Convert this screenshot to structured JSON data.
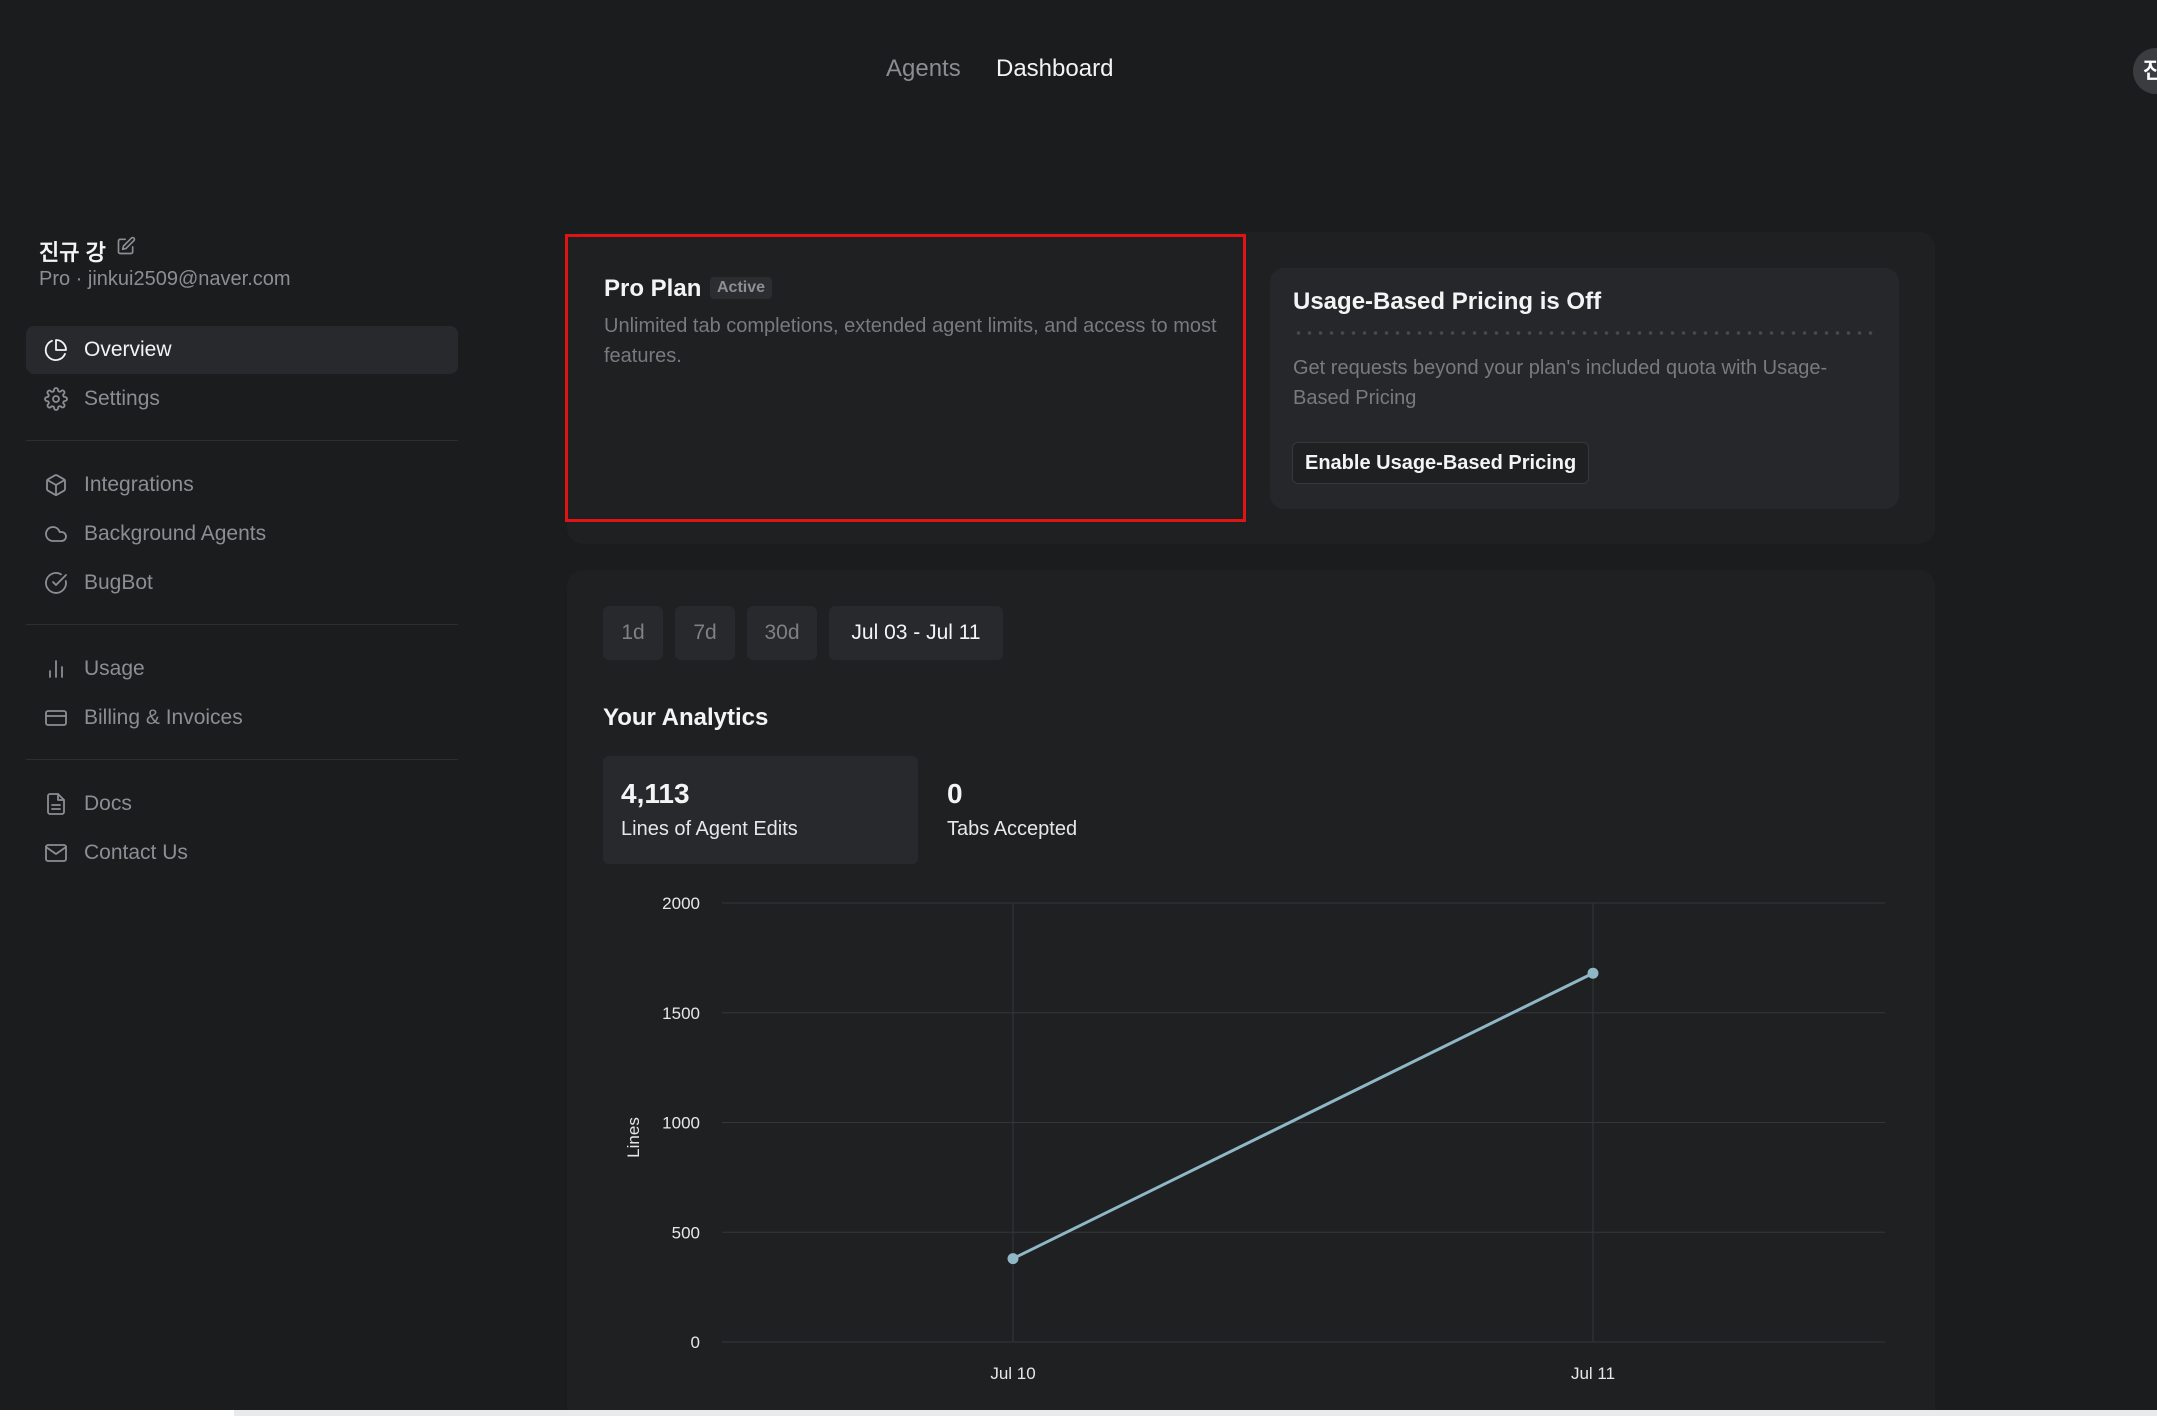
{
  "nav": {
    "agents": "Agents",
    "dashboard": "Dashboard",
    "avatar": "진"
  },
  "profile": {
    "name": "진규 강",
    "subtitle": "Pro · jinkui2509@naver.com"
  },
  "sidebar": {
    "group1": [
      {
        "label": "Overview",
        "icon": "pie-chart-icon"
      },
      {
        "label": "Settings",
        "icon": "gear-icon"
      }
    ],
    "group2": [
      {
        "label": "Integrations",
        "icon": "cube-icon"
      },
      {
        "label": "Background Agents",
        "icon": "cloud-icon"
      },
      {
        "label": "BugBot",
        "icon": "check-circle-icon"
      }
    ],
    "group3": [
      {
        "label": "Usage",
        "icon": "bar-chart-icon"
      },
      {
        "label": "Billing & Invoices",
        "icon": "credit-card-icon"
      }
    ],
    "group4": [
      {
        "label": "Docs",
        "icon": "document-icon"
      },
      {
        "label": "Contact Us",
        "icon": "mail-icon"
      }
    ]
  },
  "plan": {
    "title": "Pro Plan",
    "badge": "Active",
    "description": "Unlimited tab completions, extended agent limits, and access to most features."
  },
  "usage_pricing": {
    "title": "Usage-Based Pricing is Off",
    "description": "Get requests beyond your plan's included quota with Usage-Based Pricing",
    "button": "Enable Usage-Based Pricing"
  },
  "ranges": [
    "1d",
    "7d",
    "30d",
    "Jul 03 - Jul 11"
  ],
  "analytics": {
    "title": "Your Analytics",
    "stats": [
      {
        "value": "4,113",
        "label": "Lines of Agent Edits"
      },
      {
        "value": "0",
        "label": "Tabs Accepted"
      }
    ]
  },
  "colors": {
    "accent_line": "#8fb7c6",
    "highlight_border": "#e01414"
  },
  "chart_data": {
    "type": "line",
    "categories": [
      "Jul 10",
      "Jul 11"
    ],
    "series": [
      {
        "values": [
          380,
          1680
        ]
      }
    ],
    "ylabel": "Lines",
    "xlabel": "",
    "ylim": [
      0,
      2000
    ],
    "yticks": [
      0,
      500,
      1000,
      1500,
      2000
    ],
    "grid": true
  }
}
